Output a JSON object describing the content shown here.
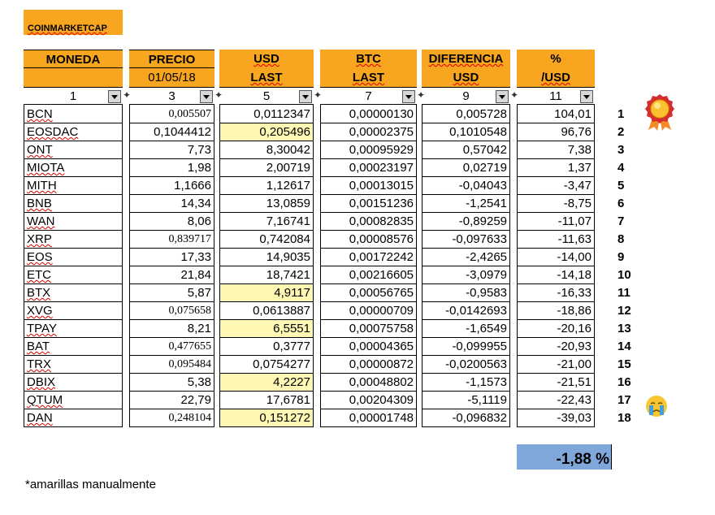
{
  "title": "COINMARKETCAP",
  "columns": [
    {
      "h1": "MONEDA",
      "h2": "",
      "filter": "1"
    },
    {
      "h1": "PRECIO",
      "h2": "01/05/18",
      "filter": "3"
    },
    {
      "h1": "USD",
      "h2": "LAST",
      "filter": "5"
    },
    {
      "h1": "BTC",
      "h2": "LAST",
      "filter": "7"
    },
    {
      "h1": "DIFERENCIA",
      "h2": "USD",
      "filter": "9"
    },
    {
      "h1": "%",
      "h2": "/USD",
      "filter": "11"
    }
  ],
  "rows": [
    {
      "coin": "BCN",
      "precio": "0,005507",
      "usd": "0,0112347",
      "btc": "0,00000130",
      "dif": "0,005728",
      "pct": "104,01",
      "rank": "1",
      "serif": true,
      "yellow": false
    },
    {
      "coin": "EOSDAC",
      "precio": "0,1044412",
      "usd": "0,205496",
      "btc": "0,00002375",
      "dif": "0,1010548",
      "pct": "96,76",
      "rank": "2",
      "serif": false,
      "yellow": true
    },
    {
      "coin": "ONT",
      "precio": "7,73",
      "usd": "8,30042",
      "btc": "0,00095929",
      "dif": "0,57042",
      "pct": "7,38",
      "rank": "3",
      "serif": false,
      "yellow": false
    },
    {
      "coin": "MIOTA",
      "precio": "1,98",
      "usd": "2,00719",
      "btc": "0,00023197",
      "dif": "0,02719",
      "pct": "1,37",
      "rank": "4",
      "serif": false,
      "yellow": false
    },
    {
      "coin": "MITH",
      "precio": "1,1666",
      "usd": "1,12617",
      "btc": "0,00013015",
      "dif": "-0,04043",
      "pct": "-3,47",
      "rank": "5",
      "serif": false,
      "yellow": false
    },
    {
      "coin": "BNB",
      "precio": "14,34",
      "usd": "13,0859",
      "btc": "0,00151236",
      "dif": "-1,2541",
      "pct": "-8,75",
      "rank": "6",
      "serif": false,
      "yellow": false
    },
    {
      "coin": "WAN",
      "precio": "8,06",
      "usd": "7,16741",
      "btc": "0,00082835",
      "dif": "-0,89259",
      "pct": "-11,07",
      "rank": "7",
      "serif": false,
      "yellow": false
    },
    {
      "coin": "XRP",
      "precio": "0,839717",
      "usd": "0,742084",
      "btc": "0,00008576",
      "dif": "-0,097633",
      "pct": "-11,63",
      "rank": "8",
      "serif": true,
      "yellow": false
    },
    {
      "coin": "EOS",
      "precio": "17,33",
      "usd": "14,9035",
      "btc": "0,00172242",
      "dif": "-2,4265",
      "pct": "-14,00",
      "rank": "9",
      "serif": false,
      "yellow": false
    },
    {
      "coin": "ETC",
      "precio": "21,84",
      "usd": "18,7421",
      "btc": "0,00216605",
      "dif": "-3,0979",
      "pct": "-14,18",
      "rank": "10",
      "serif": false,
      "yellow": false
    },
    {
      "coin": "BTX",
      "precio": "5,87",
      "usd": "4,9117",
      "btc": "0,00056765",
      "dif": "-0,9583",
      "pct": "-16,33",
      "rank": "11",
      "serif": false,
      "yellow": true
    },
    {
      "coin": "XVG",
      "precio": "0,075658",
      "usd": "0,0613887",
      "btc": "0,00000709",
      "dif": "-0,0142693",
      "pct": "-18,86",
      "rank": "12",
      "serif": true,
      "yellow": false
    },
    {
      "coin": "TPAY",
      "precio": "8,21",
      "usd": "6,5551",
      "btc": "0,00075758",
      "dif": "-1,6549",
      "pct": "-20,16",
      "rank": "13",
      "serif": false,
      "yellow": true
    },
    {
      "coin": "BAT",
      "precio": "0,477655",
      "usd": "0,3777",
      "btc": "0,00004365",
      "dif": "-0,099955",
      "pct": "-20,93",
      "rank": "14",
      "serif": true,
      "yellow": false
    },
    {
      "coin": "TRX",
      "precio": "0,095484",
      "usd": "0,0754277",
      "btc": "0,00000872",
      "dif": "-0,0200563",
      "pct": "-21,00",
      "rank": "15",
      "serif": true,
      "yellow": false
    },
    {
      "coin": "DBIX",
      "precio": "5,38",
      "usd": "4,2227",
      "btc": "0,00048802",
      "dif": "-1,1573",
      "pct": "-21,51",
      "rank": "16",
      "serif": false,
      "yellow": true
    },
    {
      "coin": "QTUM",
      "precio": "22,79",
      "usd": "17,6781",
      "btc": "0,00204309",
      "dif": "-5,1119",
      "pct": "-22,43",
      "rank": "17",
      "serif": false,
      "yellow": false
    },
    {
      "coin": "DAN",
      "precio": "0,248104",
      "usd": "0,151272",
      "btc": "0,00001748",
      "dif": "-0,096832",
      "pct": "-39,03",
      "rank": "18",
      "serif": true,
      "yellow": true
    }
  ],
  "total": "-1,88 %",
  "note": "*amarillas manualmente",
  "icons": {
    "first": "award-medal-icon",
    "last": "crying-face-icon"
  },
  "colors": {
    "header": "#f8a51f",
    "manual": "#fff8b5",
    "total": "#7fa7d9"
  }
}
